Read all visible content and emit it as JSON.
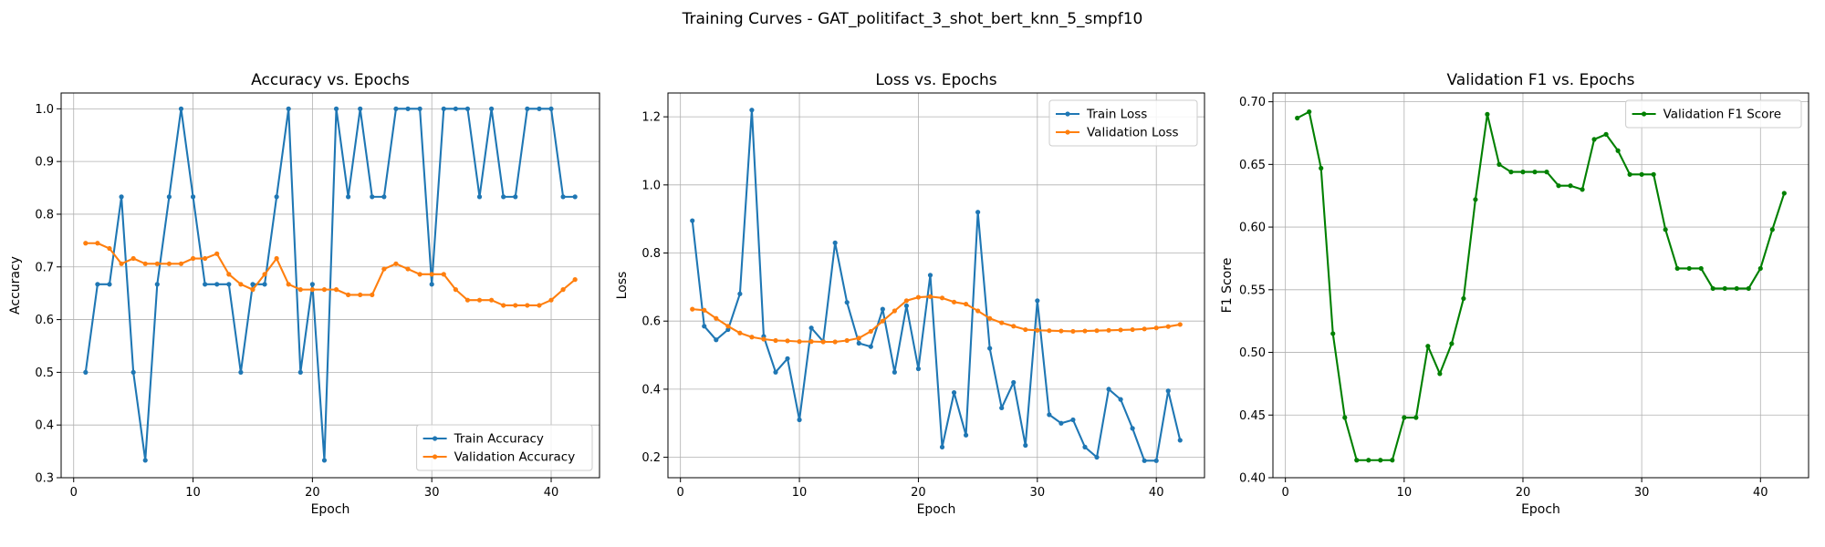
{
  "figure": {
    "suptitle": "Training Curves - GAT_politifact_3_shot_bert_knn_5_smpf10",
    "colors": {
      "blue": "#1f77b4",
      "orange": "#ff7f0e",
      "green": "#008000"
    },
    "grid": true
  },
  "chart_data": [
    {
      "type": "line",
      "title": "Accuracy vs. Epochs",
      "xlabel": "Epoch",
      "ylabel": "Accuracy",
      "xlim": [
        -1.05,
        44.05
      ],
      "ylim": [
        0.3,
        1.03
      ],
      "xticks": [
        0,
        10,
        20,
        30,
        40
      ],
      "xtick_labels": [
        "0",
        "10",
        "20",
        "30",
        "40"
      ],
      "yticks": [
        0.3,
        0.4,
        0.5,
        0.6,
        0.7,
        0.8,
        0.9,
        1.0
      ],
      "ytick_labels": [
        "0.3",
        "0.4",
        "0.5",
        "0.6",
        "0.7",
        "0.8",
        "0.9",
        "1.0"
      ],
      "legend_loc": "lower right",
      "x": [
        1,
        2,
        3,
        4,
        5,
        6,
        7,
        8,
        9,
        10,
        11,
        12,
        13,
        14,
        15,
        16,
        17,
        18,
        19,
        20,
        21,
        22,
        23,
        24,
        25,
        26,
        27,
        28,
        29,
        30,
        31,
        32,
        33,
        34,
        35,
        36,
        37,
        38,
        39,
        40,
        41,
        42
      ],
      "series": [
        {
          "name": "Train Accuracy",
          "color": "#1f77b4",
          "values": [
            0.5,
            0.667,
            0.667,
            0.833,
            0.5,
            0.333,
            0.667,
            0.833,
            1.0,
            0.833,
            0.667,
            0.667,
            0.667,
            0.5,
            0.667,
            0.667,
            0.833,
            1.0,
            0.5,
            0.667,
            0.333,
            1.0,
            0.833,
            1.0,
            0.833,
            0.833,
            1.0,
            1.0,
            1.0,
            0.667,
            1.0,
            1.0,
            1.0,
            0.833,
            1.0,
            0.833,
            0.833,
            1.0,
            1.0,
            1.0,
            0.833,
            0.833
          ]
        },
        {
          "name": "Validation Accuracy",
          "color": "#ff7f0e",
          "values": [
            0.745,
            0.745,
            0.735,
            0.706,
            0.716,
            0.706,
            0.706,
            0.706,
            0.706,
            0.716,
            0.716,
            0.725,
            0.686,
            0.667,
            0.657,
            0.686,
            0.716,
            0.667,
            0.657,
            0.657,
            0.657,
            0.657,
            0.647,
            0.647,
            0.647,
            0.696,
            0.706,
            0.696,
            0.686,
            0.686,
            0.686,
            0.657,
            0.637,
            0.637,
            0.637,
            0.627,
            0.627,
            0.627,
            0.627,
            0.637,
            0.657,
            0.676
          ]
        }
      ]
    },
    {
      "type": "line",
      "title": "Loss vs. Epochs",
      "xlabel": "Epoch",
      "ylabel": "Loss",
      "xlim": [
        -1.05,
        44.05
      ],
      "ylim": [
        0.14,
        1.27
      ],
      "xticks": [
        0,
        10,
        20,
        30,
        40
      ],
      "xtick_labels": [
        "0",
        "10",
        "20",
        "30",
        "40"
      ],
      "yticks": [
        0.2,
        0.4,
        0.6,
        0.8,
        1.0,
        1.2
      ],
      "ytick_labels": [
        "0.2",
        "0.4",
        "0.6",
        "0.8",
        "1.0",
        "1.2"
      ],
      "legend_loc": "upper right",
      "x": [
        1,
        2,
        3,
        4,
        5,
        6,
        7,
        8,
        9,
        10,
        11,
        12,
        13,
        14,
        15,
        16,
        17,
        18,
        19,
        20,
        21,
        22,
        23,
        24,
        25,
        26,
        27,
        28,
        29,
        30,
        31,
        32,
        33,
        34,
        35,
        36,
        37,
        38,
        39,
        40,
        41,
        42
      ],
      "series": [
        {
          "name": "Train Loss",
          "color": "#1f77b4",
          "values": [
            0.895,
            0.585,
            0.545,
            0.575,
            0.68,
            1.22,
            0.555,
            0.45,
            0.49,
            0.31,
            0.58,
            0.54,
            0.83,
            0.655,
            0.535,
            0.525,
            0.635,
            0.45,
            0.645,
            0.46,
            0.735,
            0.23,
            0.39,
            0.265,
            0.92,
            0.52,
            0.345,
            0.42,
            0.235,
            0.66,
            0.325,
            0.3,
            0.31,
            0.23,
            0.2,
            0.4,
            0.37,
            0.285,
            0.19,
            0.19,
            0.395,
            0.25
          ]
        },
        {
          "name": "Validation Loss",
          "color": "#ff7f0e",
          "values": [
            0.635,
            0.632,
            0.608,
            0.585,
            0.565,
            0.553,
            0.547,
            0.543,
            0.542,
            0.54,
            0.54,
            0.539,
            0.539,
            0.543,
            0.55,
            0.57,
            0.6,
            0.63,
            0.66,
            0.67,
            0.672,
            0.668,
            0.656,
            0.65,
            0.63,
            0.608,
            0.595,
            0.585,
            0.575,
            0.573,
            0.572,
            0.571,
            0.57,
            0.571,
            0.572,
            0.573,
            0.574,
            0.575,
            0.577,
            0.58,
            0.584,
            0.59
          ]
        }
      ]
    },
    {
      "type": "line",
      "title": "Validation F1 vs. Epochs",
      "xlabel": "Epoch",
      "ylabel": "F1 Score",
      "xlim": [
        -1.05,
        44.05
      ],
      "ylim": [
        0.4,
        0.707
      ],
      "xticks": [
        0,
        10,
        20,
        30,
        40
      ],
      "xtick_labels": [
        "0",
        "10",
        "20",
        "30",
        "40"
      ],
      "yticks": [
        0.4,
        0.45,
        0.5,
        0.55,
        0.6,
        0.65,
        0.7
      ],
      "ytick_labels": [
        "0.40",
        "0.45",
        "0.50",
        "0.55",
        "0.60",
        "0.65",
        "0.70"
      ],
      "legend_loc": "upper right",
      "x": [
        1,
        2,
        3,
        4,
        5,
        6,
        7,
        8,
        9,
        10,
        11,
        12,
        13,
        14,
        15,
        16,
        17,
        18,
        19,
        20,
        21,
        22,
        23,
        24,
        25,
        26,
        27,
        28,
        29,
        30,
        31,
        32,
        33,
        34,
        35,
        36,
        37,
        38,
        39,
        40,
        41,
        42
      ],
      "series": [
        {
          "name": "Validation F1 Score",
          "color": "#008000",
          "values": [
            0.687,
            0.692,
            0.647,
            0.515,
            0.448,
            0.414,
            0.414,
            0.414,
            0.414,
            0.448,
            0.448,
            0.505,
            0.483,
            0.507,
            0.543,
            0.622,
            0.69,
            0.65,
            0.644,
            0.644,
            0.644,
            0.644,
            0.633,
            0.633,
            0.63,
            0.67,
            0.674,
            0.661,
            0.642,
            0.642,
            0.642,
            0.598,
            0.567,
            0.567,
            0.567,
            0.551,
            0.551,
            0.551,
            0.551,
            0.567,
            0.598,
            0.627
          ]
        }
      ]
    }
  ]
}
